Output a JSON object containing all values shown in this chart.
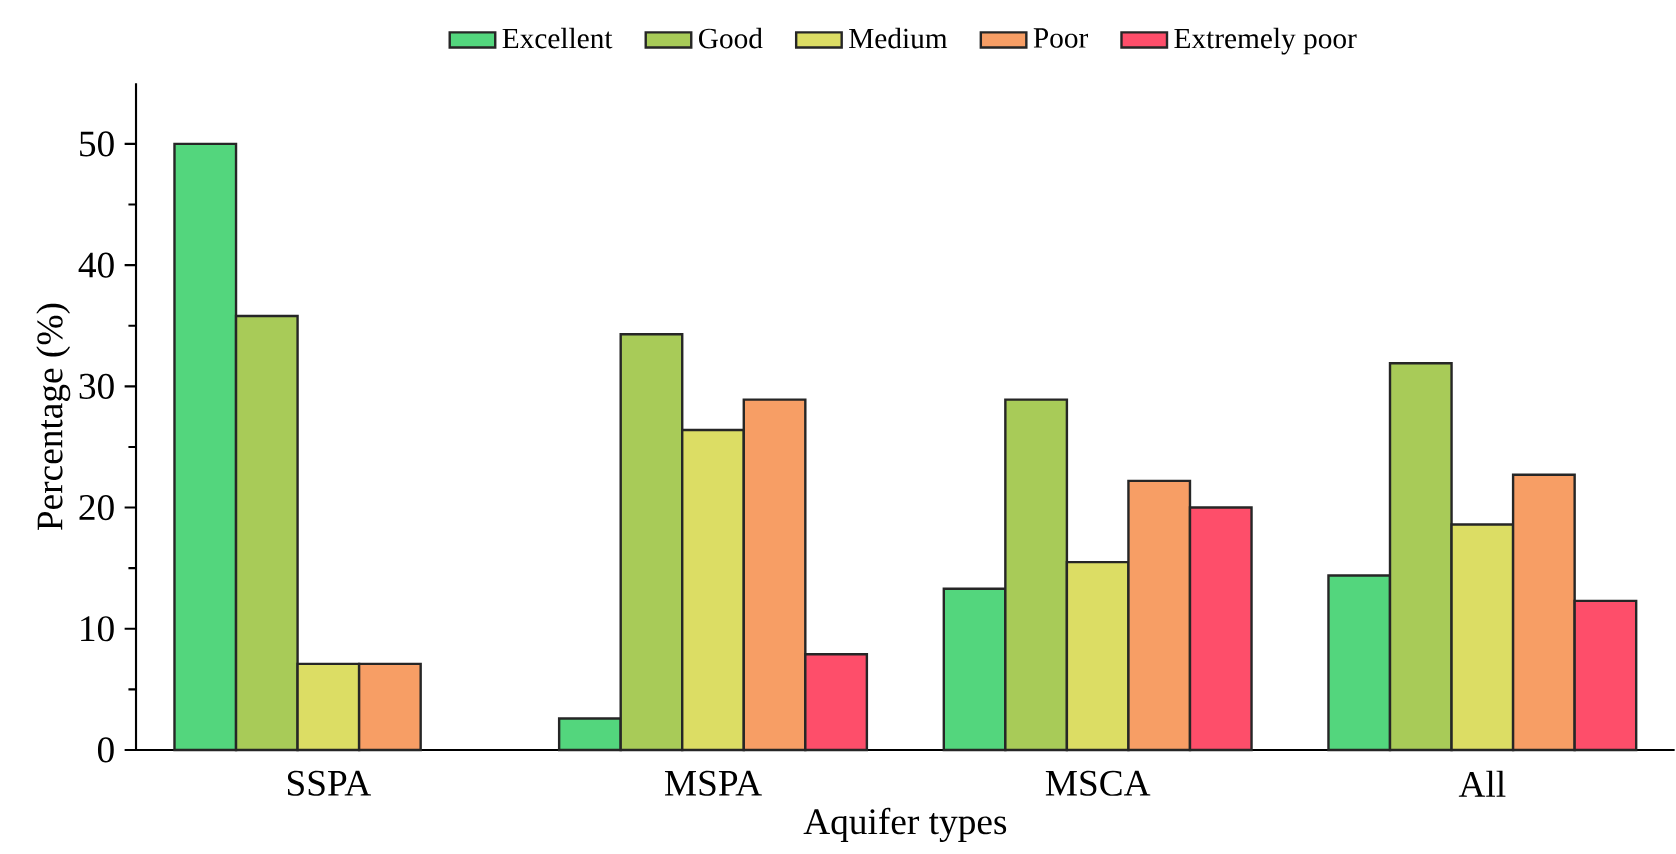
{
  "chart_data": {
    "type": "bar",
    "xlabel": "Aquifer types",
    "ylabel": "Percentage (%)",
    "categories": [
      "SSPA",
      "MSPA",
      "MSCA",
      "All"
    ],
    "series": [
      {
        "name": "Excellent",
        "color": "#53d67d",
        "values": [
          50,
          2.6,
          13.3,
          14.4
        ]
      },
      {
        "name": "Good",
        "color": "#a8cb58",
        "values": [
          35.8,
          34.3,
          28.9,
          31.9
        ]
      },
      {
        "name": "Medium",
        "color": "#dcdd64",
        "values": [
          7.1,
          26.4,
          15.5,
          18.6
        ]
      },
      {
        "name": "Poor",
        "color": "#f79e65",
        "values": [
          7.1,
          28.9,
          22.2,
          22.7
        ]
      },
      {
        "name": "Extremely poor",
        "color": "#fe4e6a",
        "values": [
          null,
          7.9,
          20.0,
          12.3
        ]
      }
    ],
    "ylim": [
      0,
      55
    ],
    "yticks": [
      0,
      10,
      20,
      30,
      40,
      50
    ],
    "grid": false,
    "legend": "top"
  }
}
